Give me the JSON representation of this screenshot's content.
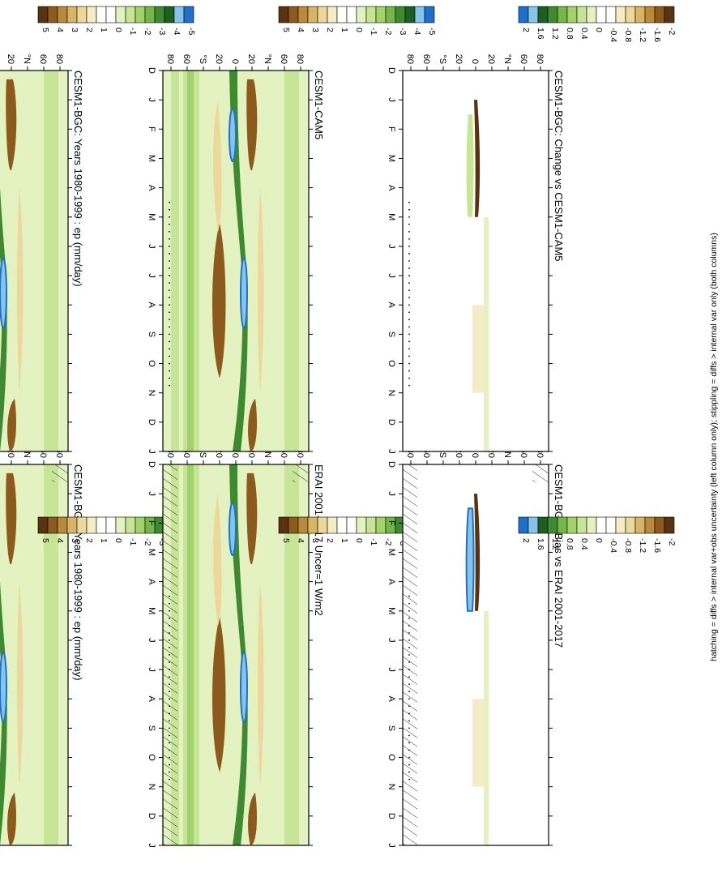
{
  "footer": "hatching = diffs > internal var+obs uncertainty (left column only); stippling = diffs > internal var only (both columns)",
  "colors": {
    "brown_dark": "#5a3210",
    "brown": "#8c5a1c",
    "tan": "#b98a3c",
    "tan_light": "#d8b464",
    "sand": "#ecd89a",
    "cream": "#f5ecc6",
    "white": "#ffffff",
    "lime_pale": "#e3f2c0",
    "lime": "#c6e596",
    "green_light": "#a2d26c",
    "green": "#74b64a",
    "green_dark": "#3f8a30",
    "green_deep": "#1d5e22",
    "sky": "#86c4ea",
    "blue": "#1f70c8"
  },
  "chart_data": [
    {
      "type": "heatmap",
      "id": "p1",
      "title": "CESM1-BGC: Years 1980-1999 : ep (mm/day)",
      "x_ticks": [
        "D",
        "J",
        "F",
        "M",
        "A",
        "M",
        "J",
        "J",
        "A",
        "S",
        "O",
        "N",
        "D",
        "J"
      ],
      "y_ticks": [
        "80",
        "60",
        "°N",
        "20",
        "0",
        "20",
        "°S",
        "60",
        "80"
      ],
      "ylim": [
        -90,
        90
      ],
      "colorbar": [
        "5",
        "4",
        "3",
        "2",
        "1",
        "0",
        "-1",
        "-2",
        "-3",
        "-4",
        "-5"
      ],
      "hatched": true,
      "stippled": true
    },
    {
      "type": "heatmap",
      "id": "p2",
      "title": "CESM1-BGC: Years 1980-1999 : ep (mm/day)",
      "x_ticks": [
        "D",
        "J",
        "F",
        "M",
        "A",
        "M",
        "J",
        "J",
        "A",
        "S",
        "O",
        "N",
        "D",
        "J"
      ],
      "y_ticks": [
        "80",
        "60",
        "°N",
        "20",
        "0",
        "20",
        "°S",
        "60",
        "80"
      ],
      "ylim": [
        -90,
        90
      ],
      "colorbar": [
        "5",
        "4",
        "3",
        "2",
        "1",
        "0",
        "-1",
        "-2",
        "-3",
        "-4",
        "-5"
      ],
      "hatched": false,
      "stippled": true
    },
    {
      "type": "heatmap",
      "id": "p3",
      "title": "ERAI 2001-2017 Uncer=1 W/m2",
      "x_ticks": [
        "D",
        "J",
        "F",
        "M",
        "A",
        "M",
        "J",
        "J",
        "A",
        "S",
        "O",
        "N",
        "D",
        "J"
      ],
      "y_ticks": [
        "80",
        "60",
        "°N",
        "20",
        "0",
        "20",
        "°S",
        "60",
        "80"
      ],
      "ylim": [
        -90,
        90
      ],
      "colorbar": [
        "5",
        "4",
        "3",
        "2",
        "1",
        "0",
        "-1",
        "-2",
        "-3",
        "-4",
        "-5"
      ],
      "hatched": true,
      "stippled": true
    },
    {
      "type": "heatmap",
      "id": "p4",
      "title": "CESM1-CAM5",
      "x_ticks": [
        "D",
        "J",
        "F",
        "M",
        "A",
        "M",
        "J",
        "J",
        "A",
        "S",
        "O",
        "N",
        "D",
        "J"
      ],
      "y_ticks": [
        "80",
        "60",
        "°N",
        "20",
        "0",
        "20",
        "°S",
        "60",
        "80"
      ],
      "ylim": [
        -90,
        90
      ],
      "colorbar": [
        "5",
        "4",
        "3",
        "2",
        "1",
        "0",
        "-1",
        "-2",
        "-3",
        "-4",
        "-5"
      ],
      "hatched": false,
      "stippled": true
    },
    {
      "type": "heatmap",
      "id": "p5",
      "title": "CESM1-BGC: Bias vs ERAI 2001-2017",
      "x_ticks": [
        "D",
        "J",
        "F",
        "M",
        "A",
        "M",
        "J",
        "J",
        "A",
        "S",
        "O",
        "N",
        "D",
        "J"
      ],
      "y_ticks": [
        "80",
        "60",
        "°N",
        "20",
        "0",
        "20",
        "°S",
        "60",
        "80"
      ],
      "ylim": [
        -90,
        90
      ],
      "colorbar": [
        "2",
        "1.6",
        "1.2",
        "0.8",
        "0.4",
        "0",
        "-0.4",
        "-0.8",
        "-1.2",
        "-1.6",
        "-2"
      ],
      "hatched": true,
      "stippled": true
    },
    {
      "type": "heatmap",
      "id": "p6",
      "title": "CESM1-BGC: Change vs CESM1-CAM5",
      "x_ticks": [
        "D",
        "J",
        "F",
        "M",
        "A",
        "M",
        "J",
        "J",
        "A",
        "S",
        "O",
        "N",
        "D",
        "J"
      ],
      "y_ticks": [
        "80",
        "60",
        "°N",
        "20",
        "0",
        "20",
        "°S",
        "60",
        "80"
      ],
      "ylim": [
        -90,
        90
      ],
      "colorbar": [
        "2",
        "1.6",
        "1.2",
        "0.8",
        "0.4",
        "0",
        "-0.4",
        "-0.8",
        "-1.2",
        "-1.6",
        "-2"
      ],
      "hatched": false,
      "stippled": true
    }
  ]
}
